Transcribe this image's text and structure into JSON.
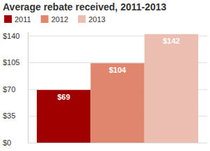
{
  "chart_data": {
    "type": "bar",
    "title": "Average rebate received, 2011-2013",
    "categories": [
      null
    ],
    "series": [
      {
        "name": "2011",
        "color": "#a10000",
        "values": [
          69
        ],
        "value_labels": [
          "$69"
        ]
      },
      {
        "name": "2012",
        "color": "#e0866f",
        "values": [
          104
        ],
        "value_labels": [
          "$104"
        ]
      },
      {
        "name": "2013",
        "color": "#ecbdb1",
        "values": [
          142
        ],
        "value_labels": [
          "$142"
        ]
      }
    ],
    "ylim": [
      0,
      145
    ],
    "yticks": [
      {
        "value": 0,
        "label": "$0"
      },
      {
        "value": 35,
        "label": "$35"
      },
      {
        "value": 70,
        "label": "$70"
      },
      {
        "value": 105,
        "label": "$105"
      },
      {
        "value": 140,
        "label": "$140"
      }
    ],
    "grid": true,
    "legend": "top",
    "data_labels": true
  }
}
